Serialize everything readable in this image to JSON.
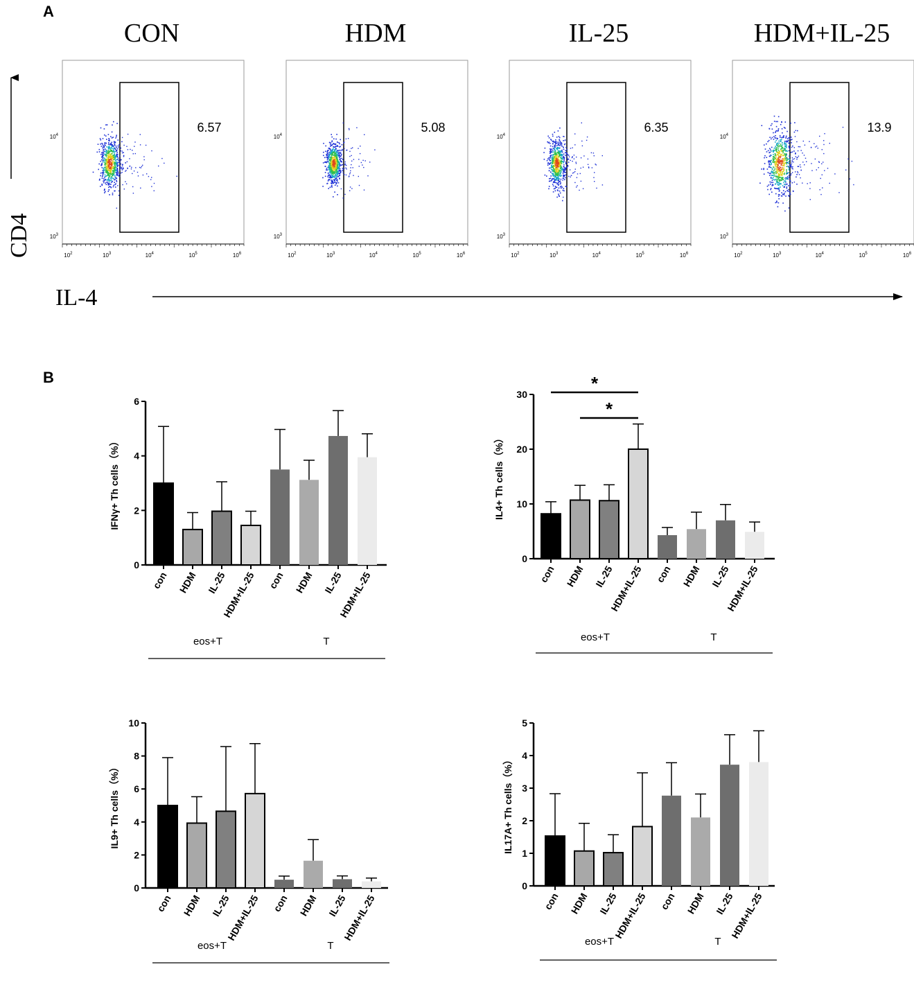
{
  "panel_a": {
    "label": "A",
    "y_label": "CD4",
    "x_label": "IL-4",
    "y_ticks": [
      "10",
      "10"
    ],
    "y_tick_exps": [
      "4",
      "3"
    ],
    "x_ticks": [
      "10",
      "10",
      "10",
      "10",
      "10"
    ],
    "x_tick_exps": [
      "2",
      "3",
      "4",
      "5",
      "6"
    ],
    "plots": [
      {
        "title": "CON",
        "gate_value": "6.57",
        "spread": 1.0
      },
      {
        "title": "HDM",
        "gate_value": "5.08",
        "spread": 0.8
      },
      {
        "title": "IL-25",
        "gate_value": "6.35",
        "spread": 0.9
      },
      {
        "title": "HDM+IL-25",
        "gate_value": "13.9",
        "spread": 1.35
      }
    ]
  },
  "panel_b": {
    "label": "B",
    "group_labels": [
      "eos+T",
      "T"
    ]
  },
  "chart_data": [
    {
      "type": "bar",
      "title": "",
      "ylabel": "IFNγ+ Th cells（%）",
      "ylim": [
        0,
        6
      ],
      "yticks": [
        "0",
        "2",
        "4",
        "6"
      ],
      "categories": [
        "con",
        "HDM",
        "IL-25",
        "HDM+IL-25",
        "con",
        "HDM",
        "IL-25",
        "HDM+IL-25"
      ],
      "values": [
        3.0,
        1.3,
        1.97,
        1.45,
        3.5,
        3.12,
        4.73,
        3.95
      ],
      "errors": [
        2.08,
        0.62,
        1.08,
        0.52,
        1.47,
        0.72,
        0.93,
        0.86
      ],
      "colors": [
        "#000000",
        "#a8a8a8",
        "#808080",
        "#d6d6d6",
        "#6e6e6e",
        "#aaaaaa",
        "#6e6e6e",
        "#ebebeb"
      ],
      "groups": [
        "eos+T",
        "T"
      ],
      "significance": []
    },
    {
      "type": "bar",
      "title": "",
      "ylabel": "IL4+ Th cells（%）",
      "ylim": [
        0,
        30
      ],
      "yticks": [
        "0",
        "10",
        "20",
        "30"
      ],
      "categories": [
        "con",
        "HDM",
        "IL-25",
        "HDM+IL-25",
        "con",
        "HDM",
        "IL-25",
        "HDM+IL-25"
      ],
      "values": [
        8.2,
        10.7,
        10.6,
        20.0,
        4.3,
        5.4,
        7.0,
        4.9
      ],
      "errors": [
        2.2,
        2.7,
        2.9,
        4.6,
        1.4,
        3.1,
        2.9,
        1.8
      ],
      "colors": [
        "#000000",
        "#a8a8a8",
        "#808080",
        "#d6d6d6",
        "#6e6e6e",
        "#aaaaaa",
        "#6e6e6e",
        "#ebebeb"
      ],
      "groups": [
        "eos+T",
        "T"
      ],
      "significance": [
        {
          "from": 0,
          "to": 3,
          "label": "*"
        },
        {
          "from": 1,
          "to": 3,
          "label": "*"
        }
      ]
    },
    {
      "type": "bar",
      "title": "",
      "ylabel": "IL9+ Th cells（%）",
      "ylim": [
        0,
        10
      ],
      "yticks": [
        "0",
        "2",
        "4",
        "6",
        "8",
        "10"
      ],
      "categories": [
        "con",
        "HDM",
        "IL-25",
        "HDM+IL-25",
        "con",
        "HDM",
        "IL-25",
        "HDM+IL-25"
      ],
      "values": [
        5.0,
        3.93,
        4.65,
        5.72,
        0.5,
        1.65,
        0.53,
        0.4
      ],
      "errors": [
        2.9,
        1.6,
        3.92,
        3.03,
        0.22,
        1.28,
        0.2,
        0.2
      ],
      "colors": [
        "#000000",
        "#a8a8a8",
        "#808080",
        "#d6d6d6",
        "#6e6e6e",
        "#aaaaaa",
        "#6e6e6e",
        "#ebebeb"
      ],
      "groups": [
        "eos+T",
        "T"
      ],
      "significance": []
    },
    {
      "type": "bar",
      "title": "",
      "ylabel": "IL17A+ Th cells（%）",
      "ylim": [
        0,
        5
      ],
      "yticks": [
        "0",
        "1",
        "2",
        "3",
        "4",
        "5"
      ],
      "categories": [
        "con",
        "HDM",
        "IL-25",
        "HDM+IL-25",
        "con",
        "HDM",
        "IL-25",
        "HDM+IL-25"
      ],
      "values": [
        1.53,
        1.07,
        1.02,
        1.82,
        2.77,
        2.1,
        3.72,
        3.8
      ],
      "errors": [
        1.3,
        0.85,
        0.55,
        1.65,
        1.01,
        0.72,
        0.92,
        0.96
      ],
      "colors": [
        "#000000",
        "#a8a8a8",
        "#808080",
        "#d6d6d6",
        "#6e6e6e",
        "#aaaaaa",
        "#6e6e6e",
        "#ebebeb"
      ],
      "groups": [
        "eos+T",
        "T"
      ],
      "significance": []
    }
  ]
}
